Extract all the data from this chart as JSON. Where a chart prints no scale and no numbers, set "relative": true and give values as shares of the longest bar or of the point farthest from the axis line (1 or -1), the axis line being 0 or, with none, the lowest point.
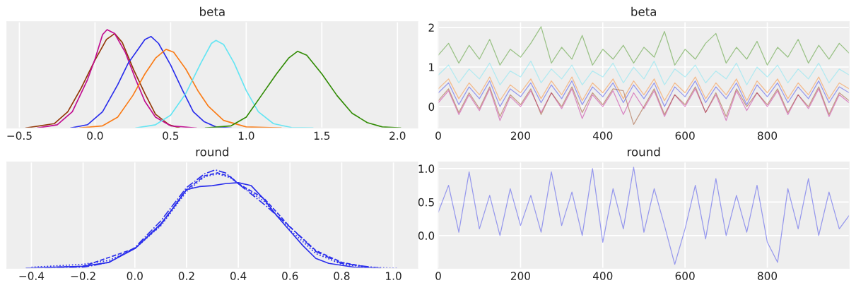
{
  "chart_data": [
    {
      "type": "line",
      "title": "beta",
      "relative": true,
      "xlim": [
        -0.583,
        2.134
      ],
      "xticks": [
        {
          "value": -0.5,
          "label": "−0.5"
        },
        {
          "value": 0.0,
          "label": "0.0"
        },
        {
          "value": 0.5,
          "label": "0.5"
        },
        {
          "value": 1.0,
          "label": "1.0"
        },
        {
          "value": 1.5,
          "label": "1.5"
        },
        {
          "value": 2.0,
          "label": "2.0"
        }
      ],
      "grid": "x",
      "legend": false,
      "tick_labels": "x",
      "line_style": "solid",
      "series": [
        {
          "color": "#933708",
          "x": [
            -0.457,
            -0.27,
            -0.18,
            -0.09,
            0.0,
            0.076,
            0.13,
            0.18,
            0.256,
            0.33,
            0.4,
            0.49,
            0.56
          ],
          "values": [
            0,
            0.044,
            0.165,
            0.41,
            0.69,
            0.9,
            0.96,
            0.87,
            0.59,
            0.35,
            0.14,
            0.033,
            0
          ]
        },
        {
          "color": "#c10c90",
          "x": [
            -0.38,
            -0.25,
            -0.15,
            -0.05,
            0.0,
            0.05,
            0.08,
            0.13,
            0.2,
            0.27,
            0.33,
            0.4,
            0.5,
            0.67
          ],
          "values": [
            0,
            0.033,
            0.165,
            0.49,
            0.7,
            0.95,
            1,
            0.96,
            0.77,
            0.49,
            0.27,
            0.11,
            0.022,
            0
          ]
        },
        {
          "color": "#2a2eec",
          "x": [
            -0.16,
            -0.05,
            0.05,
            0.15,
            0.22,
            0.28,
            0.33,
            0.37,
            0.42,
            0.5,
            0.58,
            0.65,
            0.72,
            0.8,
            0.9
          ],
          "values": [
            0,
            0.033,
            0.165,
            0.44,
            0.66,
            0.79,
            0.9,
            0.93,
            0.86,
            0.64,
            0.38,
            0.165,
            0.066,
            0.011,
            0
          ]
        },
        {
          "color": "#fa7c17",
          "x": [
            -0.1,
            0.05,
            0.15,
            0.25,
            0.33,
            0.4,
            0.47,
            0.52,
            0.6,
            0.68,
            0.75,
            0.85,
            1.0,
            1.23
          ],
          "values": [
            0,
            0.022,
            0.11,
            0.33,
            0.55,
            0.71,
            0.8,
            0.77,
            0.6,
            0.38,
            0.22,
            0.077,
            0.011,
            0
          ]
        },
        {
          "color": "#65e5f3",
          "x": [
            0.27,
            0.4,
            0.5,
            0.6,
            0.7,
            0.77,
            0.8,
            0.85,
            0.92,
            1.0,
            1.08,
            1.18,
            1.3,
            1.44
          ],
          "values": [
            0,
            0.033,
            0.13,
            0.35,
            0.66,
            0.86,
            0.89,
            0.85,
            0.66,
            0.38,
            0.165,
            0.044,
            0.005,
            0
          ]
        },
        {
          "color": "#328c06",
          "x": [
            0.73,
            0.9,
            1.0,
            1.1,
            1.2,
            1.28,
            1.34,
            1.4,
            1.5,
            1.6,
            1.7,
            1.8,
            1.9,
            2.02
          ],
          "values": [
            0,
            0.022,
            0.11,
            0.33,
            0.55,
            0.71,
            0.78,
            0.74,
            0.55,
            0.33,
            0.15,
            0.055,
            0.011,
            0
          ]
        }
      ]
    },
    {
      "type": "line",
      "title": "beta",
      "xlim": [
        0,
        999
      ],
      "xticks": [
        0,
        200,
        400,
        600,
        800
      ],
      "ylim": [
        -0.54,
        2.145
      ],
      "yticks": [
        0,
        1,
        2
      ],
      "grid": true,
      "legend": false,
      "line_style": "solid",
      "x": [
        0,
        25,
        50,
        75,
        100,
        125,
        150,
        175,
        200,
        225,
        250,
        275,
        300,
        325,
        350,
        375,
        400,
        425,
        450,
        475,
        500,
        525,
        550,
        575,
        600,
        625,
        650,
        675,
        700,
        725,
        750,
        775,
        800,
        825,
        850,
        875,
        900,
        925,
        950,
        975,
        999
      ],
      "series": [
        {
          "color": "#328c06",
          "values": [
            1.3,
            1.6,
            1.1,
            1.55,
            1.2,
            1.7,
            1.05,
            1.45,
            1.25,
            1.6,
            2.02,
            1.1,
            1.5,
            1.2,
            1.8,
            1.05,
            1.45,
            1.2,
            1.55,
            1.1,
            1.5,
            1.25,
            1.9,
            1.05,
            1.45,
            1.2,
            1.6,
            1.85,
            1.1,
            1.5,
            1.2,
            1.65,
            1.05,
            1.5,
            1.25,
            1.7,
            1.1,
            1.55,
            1.2,
            1.6,
            1.35
          ]
        },
        {
          "color": "#65e5f3",
          "values": [
            0.8,
            1.05,
            0.6,
            0.95,
            0.7,
            1.1,
            0.55,
            0.9,
            0.75,
            1.15,
            0.6,
            0.95,
            0.7,
            1.05,
            0.55,
            0.9,
            0.75,
            1.1,
            0.6,
            1.0,
            0.7,
            1.15,
            0.55,
            0.95,
            0.75,
            1.05,
            0.6,
            0.9,
            0.7,
            1.1,
            0.55,
            1.0,
            0.75,
            1.05,
            0.6,
            0.95,
            0.7,
            1.1,
            0.6,
            0.95,
            0.8
          ]
        },
        {
          "color": "#fa7c17",
          "values": [
            0.45,
            0.7,
            0.2,
            0.6,
            0.3,
            0.75,
            0.15,
            0.55,
            0.35,
            0.7,
            0.2,
            0.65,
            0.3,
            0.75,
            0.15,
            0.6,
            0.35,
            0.7,
            0.2,
            0.65,
            0.3,
            0.7,
            0.15,
            0.6,
            0.35,
            0.75,
            0.2,
            0.6,
            0.3,
            0.7,
            0.15,
            0.65,
            0.35,
            0.7,
            0.2,
            0.6,
            0.3,
            0.75,
            0.2,
            0.6,
            0.45
          ]
        },
        {
          "color": "#2a2eec",
          "values": [
            0.35,
            0.6,
            0.05,
            0.5,
            0.2,
            0.65,
            0.0,
            0.45,
            0.25,
            0.6,
            0.1,
            0.55,
            0.2,
            0.65,
            0.05,
            0.5,
            0.25,
            0.6,
            0.1,
            0.55,
            0.2,
            0.6,
            0.0,
            0.5,
            0.25,
            0.65,
            0.1,
            0.5,
            0.2,
            0.6,
            0.05,
            0.55,
            0.25,
            0.6,
            0.1,
            0.5,
            0.2,
            0.65,
            0.1,
            0.5,
            0.35
          ]
        },
        {
          "color": "#c10c90",
          "values": [
            0.1,
            0.4,
            -0.2,
            0.3,
            -0.1,
            0.45,
            -0.35,
            0.25,
            0.0,
            0.4,
            -0.15,
            0.35,
            -0.05,
            0.45,
            -0.3,
            0.3,
            0.0,
            0.4,
            -0.2,
            0.35,
            -0.05,
            0.4,
            -0.25,
            0.3,
            0.0,
            0.45,
            -0.15,
            0.3,
            -0.35,
            0.4,
            -0.1,
            0.35,
            0.0,
            0.4,
            -0.2,
            0.3,
            -0.05,
            0.45,
            -0.25,
            0.3,
            0.1
          ]
        },
        {
          "color": "#933708",
          "values": [
            0.15,
            0.45,
            -0.15,
            0.35,
            -0.05,
            0.5,
            -0.25,
            0.3,
            0.05,
            0.45,
            -0.2,
            0.35,
            0.0,
            0.5,
            -0.15,
            0.35,
            0.05,
            0.45,
            0.4,
            -0.45,
            0.0,
            0.45,
            -0.2,
            0.3,
            0.05,
            0.5,
            -0.15,
            0.35,
            -0.25,
            0.45,
            0.0,
            0.35,
            0.05,
            0.45,
            -0.15,
            0.3,
            0.0,
            0.5,
            -0.2,
            0.35,
            0.15
          ]
        }
      ]
    },
    {
      "type": "line",
      "title": "round",
      "relative": true,
      "xlim": [
        -0.495,
        1.094
      ],
      "xticks": [
        {
          "value": -0.4,
          "label": "−0.4"
        },
        {
          "value": -0.2,
          "label": "−0.2"
        },
        {
          "value": 0.0,
          "label": "0.0"
        },
        {
          "value": 0.2,
          "label": "0.2"
        },
        {
          "value": 0.4,
          "label": "0.4"
        },
        {
          "value": 0.6,
          "label": "0.6"
        },
        {
          "value": 0.8,
          "label": "0.8"
        },
        {
          "value": 1.0,
          "label": "1.0"
        }
      ],
      "grid": "x",
      "legend": false,
      "tick_labels": "x",
      "series": [
        {
          "color": "#2a2eec",
          "line_style": "solid",
          "x": [
            -0.42,
            -0.2,
            -0.1,
            0,
            0.1,
            0.15,
            0.2,
            0.25,
            0.3,
            0.35,
            0.4,
            0.45,
            0.5,
            0.55,
            0.6,
            0.65,
            0.7,
            0.75,
            0.85,
            0.95
          ],
          "values": [
            0,
            0.02,
            0.06,
            0.2,
            0.45,
            0.62,
            0.8,
            0.83,
            0.84,
            0.86,
            0.87,
            0.84,
            0.7,
            0.53,
            0.38,
            0.23,
            0.1,
            0.05,
            0.01,
            0
          ]
        },
        {
          "color": "#2a2eec",
          "line_style": "dashdot",
          "x": [
            -0.35,
            -0.2,
            -0.1,
            0,
            0.1,
            0.2,
            0.27,
            0.31,
            0.35,
            0.4,
            0.5,
            0.6,
            0.7,
            0.8,
            0.95
          ],
          "values": [
            0,
            0.01,
            0.06,
            0.21,
            0.48,
            0.82,
            0.96,
            1.0,
            0.97,
            0.86,
            0.65,
            0.42,
            0.17,
            0.05,
            0
          ]
        },
        {
          "color": "#2a2eec",
          "line_style": "dashed",
          "x": [
            -0.42,
            -0.2,
            0,
            0.1,
            0.2,
            0.27,
            0.32,
            0.37,
            0.4,
            0.5,
            0.6,
            0.7,
            0.8,
            0.9,
            0.93
          ],
          "values": [
            0,
            0.02,
            0.2,
            0.44,
            0.8,
            0.94,
            0.97,
            0.93,
            0.86,
            0.71,
            0.42,
            0.18,
            0.06,
            0.01,
            0
          ]
        },
        {
          "color": "#2a2eec",
          "line_style": "dotted",
          "x": [
            -0.4,
            -0.2,
            -0.1,
            0,
            0.1,
            0.2,
            0.27,
            0.32,
            0.37,
            0.4,
            0.5,
            0.6,
            0.7,
            0.8,
            0.9,
            1.02
          ],
          "values": [
            0.01,
            0.04,
            0.08,
            0.2,
            0.43,
            0.78,
            0.93,
            0.96,
            0.92,
            0.86,
            0.68,
            0.39,
            0.15,
            0.04,
            0.01,
            0
          ]
        }
      ]
    },
    {
      "type": "line",
      "title": "round",
      "xlim": [
        0,
        999
      ],
      "xticks": [
        0,
        200,
        400,
        600,
        800
      ],
      "ylim": [
        -0.488,
        1.098
      ],
      "yticks": [
        {
          "value": 0.0,
          "label": "0.0"
        },
        {
          "value": 0.5,
          "label": "0.5"
        },
        {
          "value": 1.0,
          "label": "1.0"
        }
      ],
      "grid": true,
      "legend": false,
      "line_style": "solid",
      "x": [
        0,
        25,
        50,
        75,
        100,
        125,
        150,
        175,
        200,
        225,
        250,
        275,
        300,
        325,
        350,
        375,
        400,
        425,
        450,
        475,
        500,
        525,
        550,
        575,
        600,
        625,
        650,
        675,
        700,
        725,
        750,
        775,
        800,
        825,
        850,
        875,
        900,
        925,
        950,
        975,
        999
      ],
      "series": [
        {
          "color": "#2a2eec",
          "values": [
            0.35,
            0.75,
            0.05,
            0.95,
            0.1,
            0.6,
            0.0,
            0.7,
            0.15,
            0.6,
            0.05,
            0.95,
            0.15,
            0.65,
            0.0,
            1.0,
            -0.1,
            0.7,
            0.1,
            1.02,
            0.05,
            0.7,
            0.15,
            -0.43,
            0.1,
            0.75,
            -0.05,
            0.85,
            0.0,
            0.6,
            0.05,
            0.75,
            -0.1,
            -0.4,
            0.7,
            0.1,
            0.85,
            0.0,
            0.65,
            0.1,
            0.3
          ]
        }
      ]
    }
  ]
}
